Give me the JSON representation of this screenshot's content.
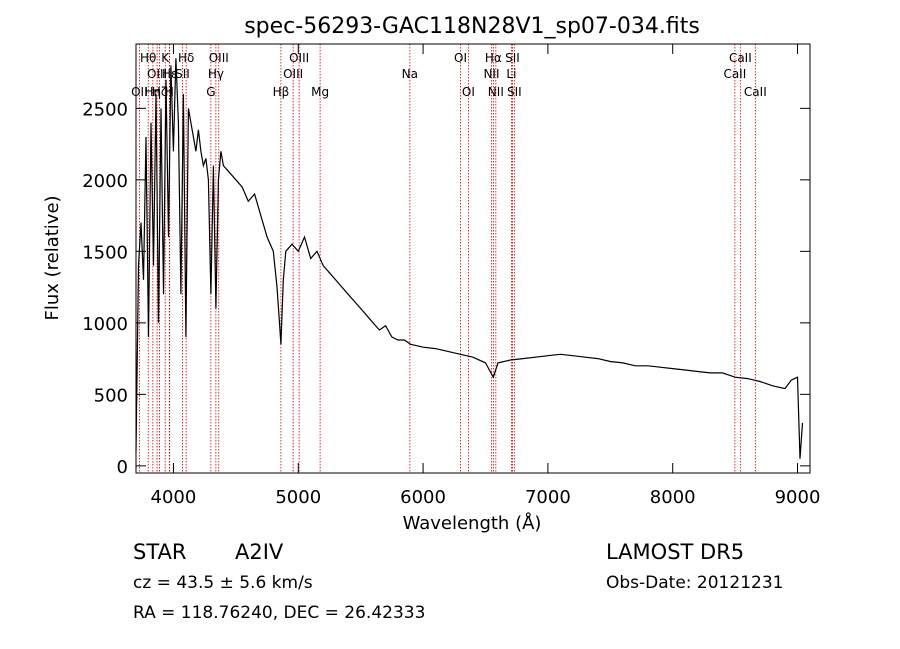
{
  "chart_data": {
    "type": "line",
    "title": "spec-56293-GAC118N28V1_sp07-034.fits",
    "xlabel": "Wavelength (Å)",
    "ylabel": "Flux (relative)",
    "xlim": [
      3700,
      9100
    ],
    "ylim": [
      -50,
      2950
    ],
    "x_ticks": [
      4000,
      5000,
      6000,
      7000,
      8000,
      9000
    ],
    "y_ticks": [
      0,
      500,
      1000,
      1500,
      2000,
      2500
    ],
    "grid": false,
    "line_color": "#000000",
    "marker_color": "#cc0000",
    "series": [
      {
        "x": [
          3700,
          3720,
          3740,
          3760,
          3780,
          3800,
          3820,
          3840,
          3860,
          3880,
          3900,
          3920,
          3940,
          3960,
          3980,
          4000,
          4020,
          4040,
          4060,
          4080,
          4100,
          4120,
          4140,
          4160,
          4180,
          4200,
          4220,
          4240,
          4260,
          4280,
          4300,
          4320,
          4340,
          4360,
          4380,
          4400,
          4450,
          4500,
          4550,
          4600,
          4650,
          4700,
          4750,
          4800,
          4830,
          4850,
          4861,
          4880,
          4900,
          4950,
          5000,
          5050,
          5100,
          5150,
          5200,
          5250,
          5300,
          5350,
          5400,
          5450,
          5500,
          5550,
          5600,
          5650,
          5700,
          5750,
          5800,
          5850,
          5900,
          5950,
          6000,
          6100,
          6200,
          6300,
          6400,
          6500,
          6563,
          6600,
          6700,
          6800,
          6900,
          7000,
          7100,
          7200,
          7300,
          7400,
          7500,
          7600,
          7700,
          7800,
          7900,
          8000,
          8100,
          8200,
          8300,
          8400,
          8500,
          8600,
          8700,
          8800,
          8900,
          8950,
          9000,
          9020,
          9040
        ],
        "values": [
          100,
          1400,
          1700,
          1300,
          2300,
          900,
          2400,
          1400,
          2600,
          1000,
          2500,
          1200,
          2700,
          1600,
          2800,
          2200,
          2850,
          2400,
          1200,
          2600,
          900,
          2500,
          2400,
          2300,
          2200,
          2350,
          2200,
          2100,
          2150,
          2000,
          1200,
          2100,
          1100,
          2000,
          2200,
          2100,
          2050,
          2000,
          1950,
          1850,
          1900,
          1750,
          1600,
          1500,
          1250,
          1000,
          850,
          1300,
          1500,
          1550,
          1500,
          1600,
          1450,
          1500,
          1400,
          1350,
          1300,
          1250,
          1200,
          1150,
          1100,
          1050,
          1000,
          950,
          980,
          900,
          880,
          880,
          850,
          840,
          830,
          820,
          800,
          780,
          760,
          720,
          620,
          720,
          740,
          750,
          760,
          770,
          780,
          770,
          760,
          750,
          730,
          720,
          700,
          700,
          690,
          680,
          670,
          660,
          650,
          650,
          620,
          610,
          590,
          560,
          540,
          600,
          620,
          50,
          300
        ]
      }
    ],
    "line_markers": [
      {
        "wavelength": 3727,
        "label": "OII",
        "row": 3
      },
      {
        "wavelength": 3798,
        "label": "Hθ",
        "row": 1
      },
      {
        "wavelength": 3835,
        "label": "Hη",
        "row": 3
      },
      {
        "wavelength": 3869,
        "label": "OIII",
        "row": 2
      },
      {
        "wavelength": 3889,
        "label": "Hζ",
        "row": 3
      },
      {
        "wavelength": 3934,
        "label": "K",
        "row": 1
      },
      {
        "wavelength": 3968,
        "label": "H",
        "row": 3
      },
      {
        "wavelength": 3970,
        "label": "Hε",
        "row": 2
      },
      {
        "wavelength": 4072,
        "label": "SII",
        "row": 2
      },
      {
        "wavelength": 4102,
        "label": "Hδ",
        "row": 1
      },
      {
        "wavelength": 4300,
        "label": "G",
        "row": 3
      },
      {
        "wavelength": 4340,
        "label": "Hγ",
        "row": 2
      },
      {
        "wavelength": 4363,
        "label": "OIII",
        "row": 1
      },
      {
        "wavelength": 4861,
        "label": "Hβ",
        "row": 3
      },
      {
        "wavelength": 4959,
        "label": "OIII",
        "row": 2
      },
      {
        "wavelength": 5007,
        "label": "OIII",
        "row": 1
      },
      {
        "wavelength": 5175,
        "label": "Mg",
        "row": 3
      },
      {
        "wavelength": 5894,
        "label": "Na",
        "row": 2
      },
      {
        "wavelength": 6300,
        "label": "OI",
        "row": 1
      },
      {
        "wavelength": 6363,
        "label": "OI",
        "row": 3
      },
      {
        "wavelength": 6548,
        "label": "NII",
        "row": 2
      },
      {
        "wavelength": 6563,
        "label": "Hα",
        "row": 1
      },
      {
        "wavelength": 6583,
        "label": "NII",
        "row": 3
      },
      {
        "wavelength": 6708,
        "label": "Li",
        "row": 2
      },
      {
        "wavelength": 6716,
        "label": "SII",
        "row": 1
      },
      {
        "wavelength": 6731,
        "label": "SII",
        "row": 3
      },
      {
        "wavelength": 8498,
        "label": "CaII",
        "row": 2
      },
      {
        "wavelength": 8542,
        "label": "CaII",
        "row": 1
      },
      {
        "wavelength": 8662,
        "label": "CaII",
        "row": 3
      }
    ]
  },
  "info": {
    "object_type": "STAR",
    "spectral_class": "A2IV",
    "survey": "LAMOST  DR5",
    "cz": "cz = 43.5 ± 5.6 km/s",
    "obs_date": "Obs-Date: 20121231",
    "coords": "RA = 118.76240, DEC =  26.42333"
  }
}
